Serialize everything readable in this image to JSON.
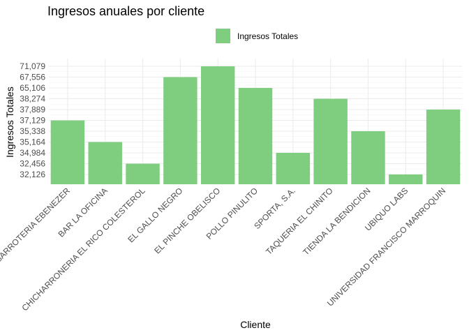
{
  "chart_data": {
    "type": "bar",
    "title": "Ingresos anuales por cliente",
    "xlabel": "Cliente",
    "ylabel": "Ingresos Totales",
    "legend": {
      "position": "top",
      "entries": [
        "Ingresos Totales"
      ]
    },
    "bar_color": "#7fce7f",
    "grid": true,
    "y_tick_labels": [
      "32,126",
      "32,456",
      "34,984",
      "35,164",
      "35,338",
      "37,129",
      "37,889",
      "38,274",
      "65,106",
      "67,556",
      "71,079"
    ],
    "categories": [
      "ABARROTERIA EBENEZER",
      "BAR LA OFICINA",
      "CHICHARRONERIA EL RICO COLESTEROL",
      "EL GALLO NEGRO",
      "EL PINCHE OBELISCO",
      "POLLO PINULITO",
      "SPORTA, S.A.",
      "TAQUERIA EL CHINITO",
      "TIENDA LA BENDICION",
      "UBIQUO LABS",
      "UNIVERSIDAD FRANCISCO MARROQUIN"
    ],
    "series": [
      {
        "name": "Ingresos Totales",
        "values": [
          37129,
          35164,
          32456,
          67556,
          71079,
          65106,
          34984,
          38274,
          35338,
          32126,
          37889
        ]
      }
    ]
  }
}
